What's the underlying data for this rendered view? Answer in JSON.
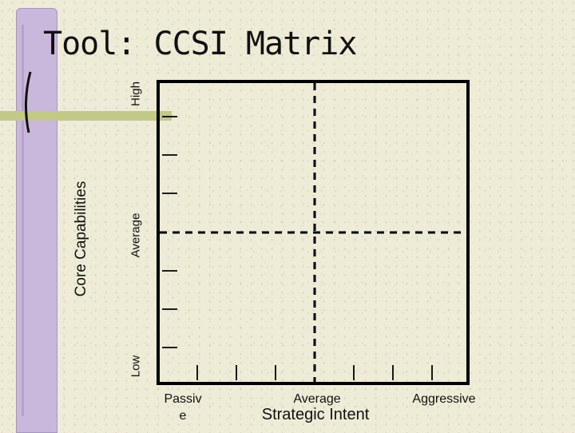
{
  "title": "Tool: CCSI Matrix",
  "y_axis": {
    "title": "Core Capabilities",
    "levels": [
      "High",
      "Average",
      "Low"
    ]
  },
  "x_axis": {
    "title": "Strategic Intent",
    "levels": [
      "Passiv e",
      "Average",
      "Aggressive"
    ]
  },
  "colors": {
    "decor_bar": "#c9b8dc",
    "decor_stripe": "#c3c987",
    "background": "#eeebd6",
    "ink": "#000000"
  }
}
